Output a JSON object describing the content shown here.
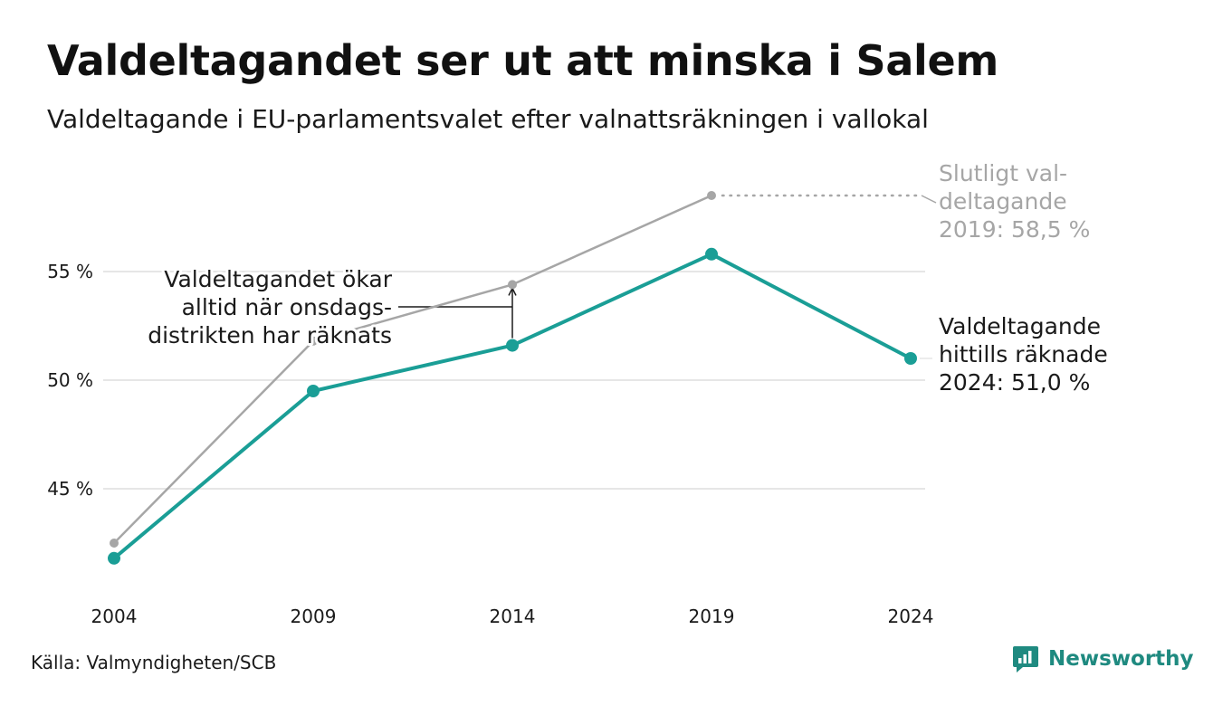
{
  "title": "Valdeltagandet ser ut att minska i Salem",
  "subtitle": "Valdeltagande i EU-parlamentsvalet efter valnattsräkningen i vallokal",
  "source": "Källa: Valmyndigheten/SCB",
  "brand": "Newsworthy",
  "colors": {
    "primary": "#1a9e96",
    "secondary": "#a6a6a6",
    "grid": "#e6e6e6",
    "text": "#1a1a1a",
    "brand": "#1f8a80"
  },
  "chart_data": {
    "type": "line",
    "x": [
      "2004",
      "2009",
      "2014",
      "2019",
      "2024"
    ],
    "series": [
      {
        "key": "final",
        "values": [
          42.5,
          51.8,
          54.4,
          58.5,
          null
        ]
      },
      {
        "key": "election_night",
        "values": [
          41.8,
          49.5,
          51.6,
          55.8,
          51.0
        ]
      }
    ],
    "yticks": [
      45,
      50,
      55
    ],
    "ytick_labels": [
      "45 %",
      "50 %",
      "55 %"
    ],
    "ylim": [
      41.0,
      59.5
    ],
    "grid": true,
    "annotations": {
      "final": [
        "Slutligt val-",
        "deltagande",
        "2019: 58,5 %"
      ],
      "current": [
        "Valdeltagande",
        "hittills räknade",
        "2024: 51,0 %"
      ],
      "gap": [
        "Valdeltagandet ökar",
        "alltid när onsdags-",
        "distrikten har räknats"
      ]
    }
  }
}
